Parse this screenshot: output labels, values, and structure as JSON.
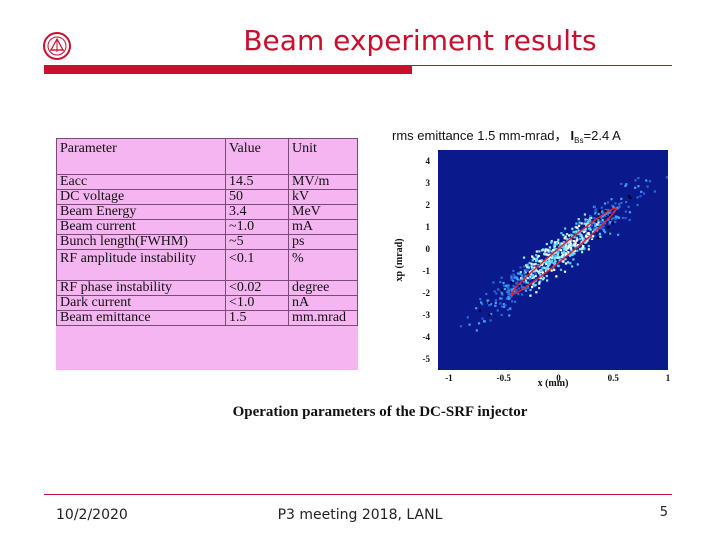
{
  "slide": {
    "title": "Beam experiment results",
    "caption": "Operation parameters of the DC-SRF injector"
  },
  "parameters_table": {
    "headers": [
      "Parameter",
      "Value",
      "Unit"
    ],
    "rows": [
      [
        "Eacc",
        "14.5",
        "MV/m"
      ],
      [
        "DC voltage",
        "50",
        "kV"
      ],
      [
        "Beam Energy",
        "3.4",
        "MeV"
      ],
      [
        "Beam current",
        "~1.0",
        "mA"
      ],
      [
        "Bunch length(FWHM)",
        "~5",
        "ps"
      ],
      [
        "RF amplitude instability",
        "<0.1",
        "%"
      ],
      [
        "RF phase instability",
        "<0.02",
        "degree"
      ],
      [
        "Dark current",
        "<1.0",
        "nA"
      ],
      [
        "Beam emittance",
        "1.5",
        "mm.mrad"
      ]
    ]
  },
  "chart_data": {
    "type": "scatter",
    "title": "rms emittance 1.5 mm-mrad， I_Bs=2.4 A",
    "title_parts": {
      "main": "rms emittance 1.5 mm-mrad，",
      "current_symbol": "I",
      "current_subscript": "Bs",
      "current_value": "=2.4 A"
    },
    "xlabel": "x (mm)",
    "ylabel": "xp (mrad)",
    "xlim": [
      -1.1,
      1.0
    ],
    "ylim": [
      -5.5,
      4.5
    ],
    "xticks": [
      "-1",
      "-0.5",
      "0",
      "0.5",
      "1"
    ],
    "xtick_values": [
      -1,
      -0.5,
      0,
      0.5,
      1
    ],
    "yticks": [
      "4",
      "3",
      "2",
      "1",
      "0",
      "-1",
      "-2",
      "-3",
      "-4",
      "-5"
    ],
    "ytick_values": [
      4,
      3,
      2,
      1,
      0,
      -1,
      -2,
      -3,
      -4,
      -5
    ],
    "ellipse": {
      "center_x": 0.05,
      "center_y": -0.1,
      "extent_x": [
        -0.45,
        0.5
      ],
      "extent_y": [
        -2.0,
        1.9
      ]
    },
    "background_color": "#0a1a8c",
    "ellipse_color": "#e0262e",
    "grid": false,
    "legend": "none"
  },
  "footer": {
    "date": "10/2/2020",
    "center": "P3 meeting 2018, LANL",
    "page": "5"
  },
  "colors": {
    "accent": "#c8102e",
    "table_fill": "#f5b5f0"
  }
}
